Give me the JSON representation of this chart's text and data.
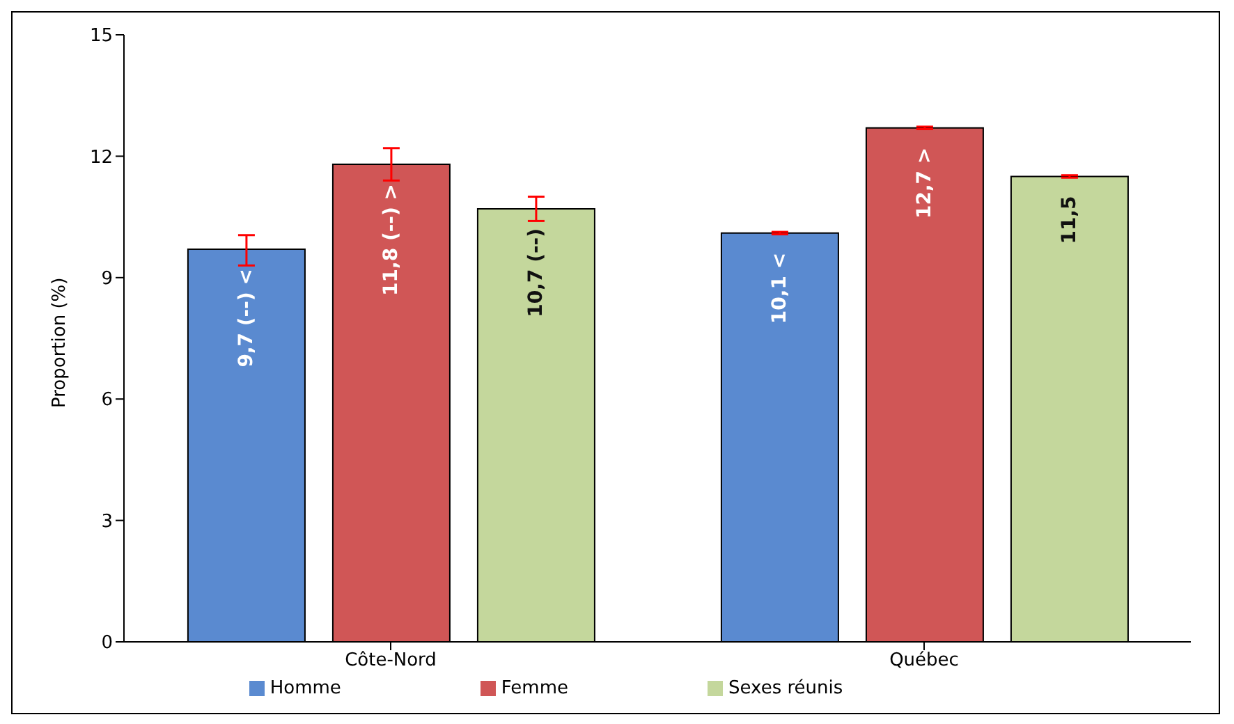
{
  "chart_data": {
    "type": "bar",
    "ylabel": "Proportion (%)",
    "categories": [
      "Côte-Nord",
      "Québec"
    ],
    "series": [
      {
        "name": "Homme",
        "color": "#5a8ad0",
        "values": [
          9.7,
          10.1
        ],
        "value_labels": [
          "9,7 (--) <",
          "10,1 <"
        ],
        "errors": [
          [
            9.3,
            10.05
          ],
          [
            10.07,
            10.13
          ]
        ]
      },
      {
        "name": "Femme",
        "color": "#d05656",
        "values": [
          11.8,
          12.7
        ],
        "value_labels": [
          "11,8 (--) >",
          "12,7 >"
        ],
        "errors": [
          [
            11.4,
            12.2
          ],
          [
            12.67,
            12.73
          ]
        ]
      },
      {
        "name": "Sexes réunis",
        "color": "#c4d79c",
        "values": [
          10.7,
          11.5
        ],
        "value_labels": [
          "10,7 (--)",
          "11,5"
        ],
        "errors": [
          [
            10.4,
            11.0
          ],
          [
            11.47,
            11.53
          ]
        ]
      }
    ],
    "ylim": [
      0,
      15
    ],
    "yticks": [
      0,
      3,
      6,
      9,
      12,
      15
    ],
    "legend": "bottom"
  }
}
